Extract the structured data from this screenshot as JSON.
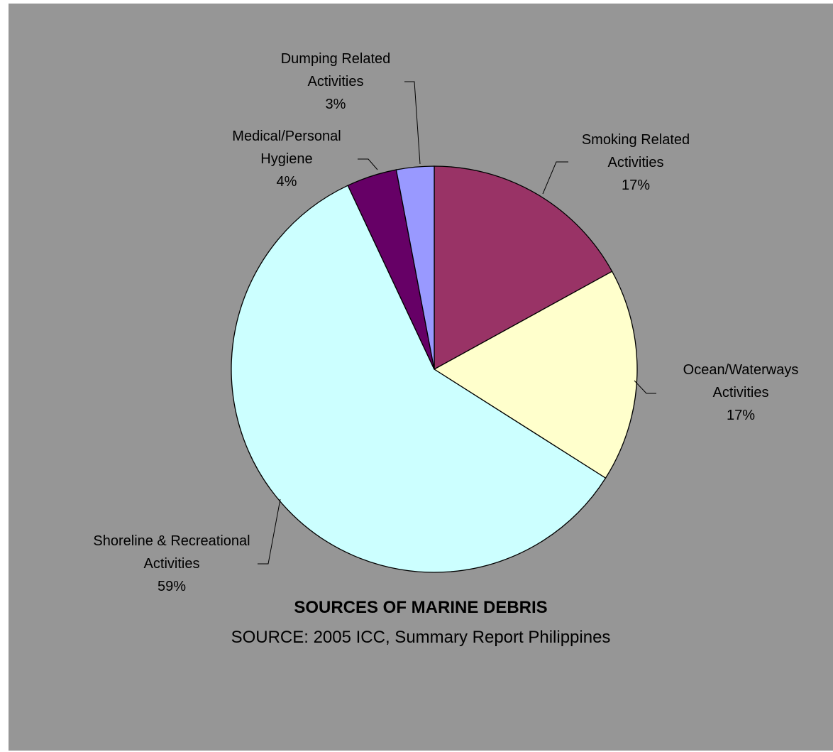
{
  "chart_data": {
    "type": "pie",
    "title": "SOURCES OF MARINE DEBRIS",
    "subtitle": "SOURCE: 2005 ICC, Summary Report Philippines",
    "start_angle_deg": 0,
    "direction": "clockwise",
    "slices": [
      {
        "label_lines": [
          "Smoking Related",
          "Activities",
          "17%"
        ],
        "value": 17,
        "color": "#993366"
      },
      {
        "label_lines": [
          "Ocean/Waterways",
          "Activities",
          "17%"
        ],
        "value": 17,
        "color": "#ffffcc"
      },
      {
        "label_lines": [
          "Shoreline & Recreational",
          "Activities",
          "59%"
        ],
        "value": 59,
        "color": "#ccffff"
      },
      {
        "label_lines": [
          "Medical/Personal",
          "Hygiene",
          "4%"
        ],
        "value": 4,
        "color": "#660066"
      },
      {
        "label_lines": [
          "Dumping Related",
          "Activities",
          "3%"
        ],
        "value": 3,
        "color": "#9999ff"
      }
    ],
    "background_color": "#969696",
    "legend": "none"
  }
}
